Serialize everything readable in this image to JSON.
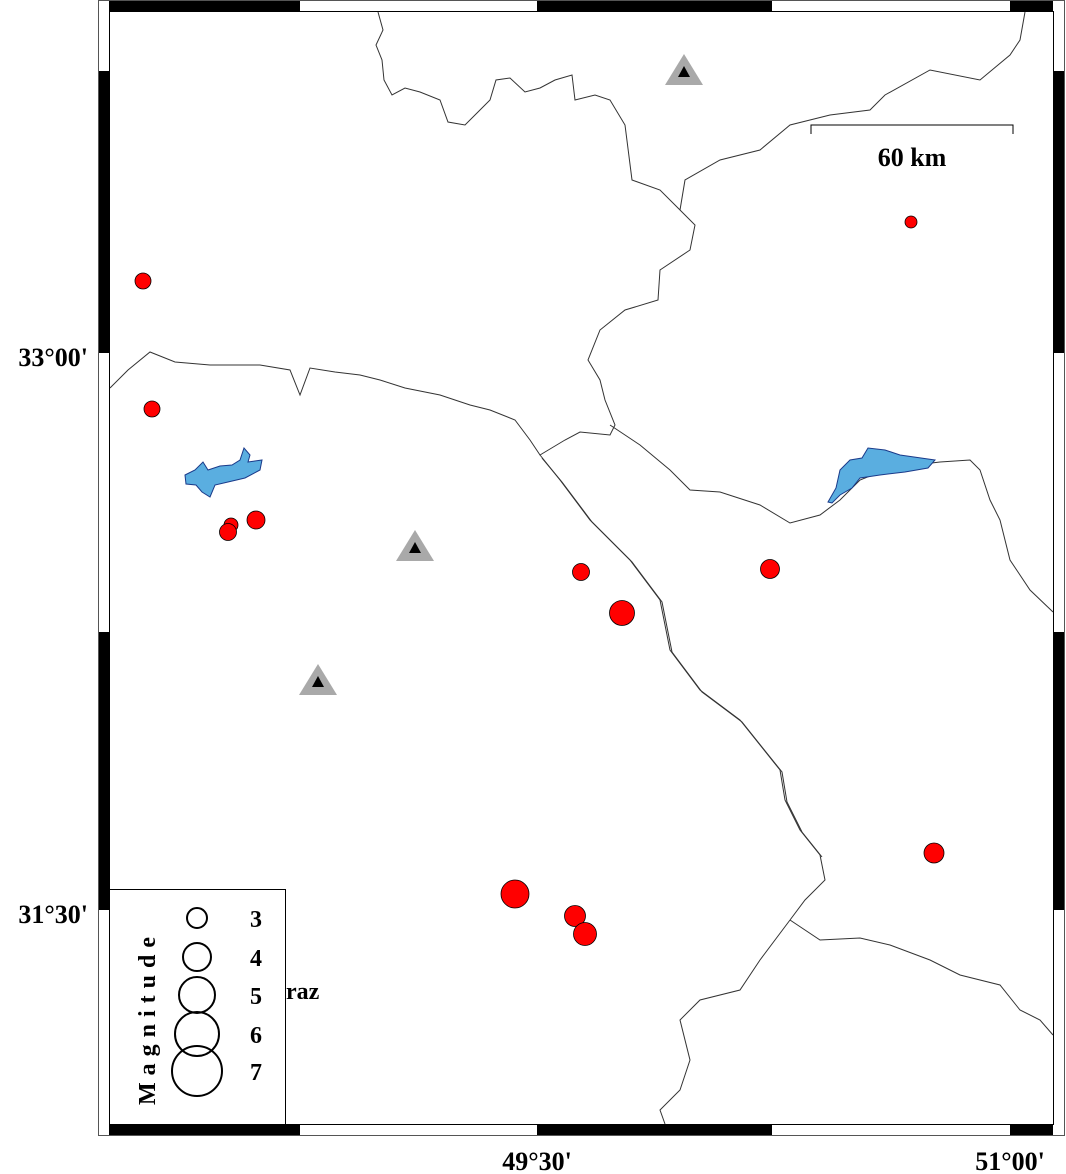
{
  "map": {
    "colors": {
      "event": "#ff0000",
      "lake": "#5aaee0",
      "station_outer": "#a9a9a9",
      "station_inner": "#000000",
      "border": "#333333"
    },
    "lat_labels": [
      "33°00'",
      "31°30'"
    ],
    "lon_labels": [
      "49°30'",
      "51°00'"
    ],
    "scale_bar": {
      "label": "60 km"
    },
    "partial_place_label": "raz",
    "legend": {
      "title": "Magnitude",
      "items": [
        {
          "label": "3",
          "magnitude": 3
        },
        {
          "label": "4",
          "magnitude": 4
        },
        {
          "label": "5",
          "magnitude": 5
        },
        {
          "label": "6",
          "magnitude": 6
        },
        {
          "label": "7",
          "magnitude": 7
        }
      ]
    },
    "event_icon": "red-circle",
    "station_icon": "triangle"
  }
}
